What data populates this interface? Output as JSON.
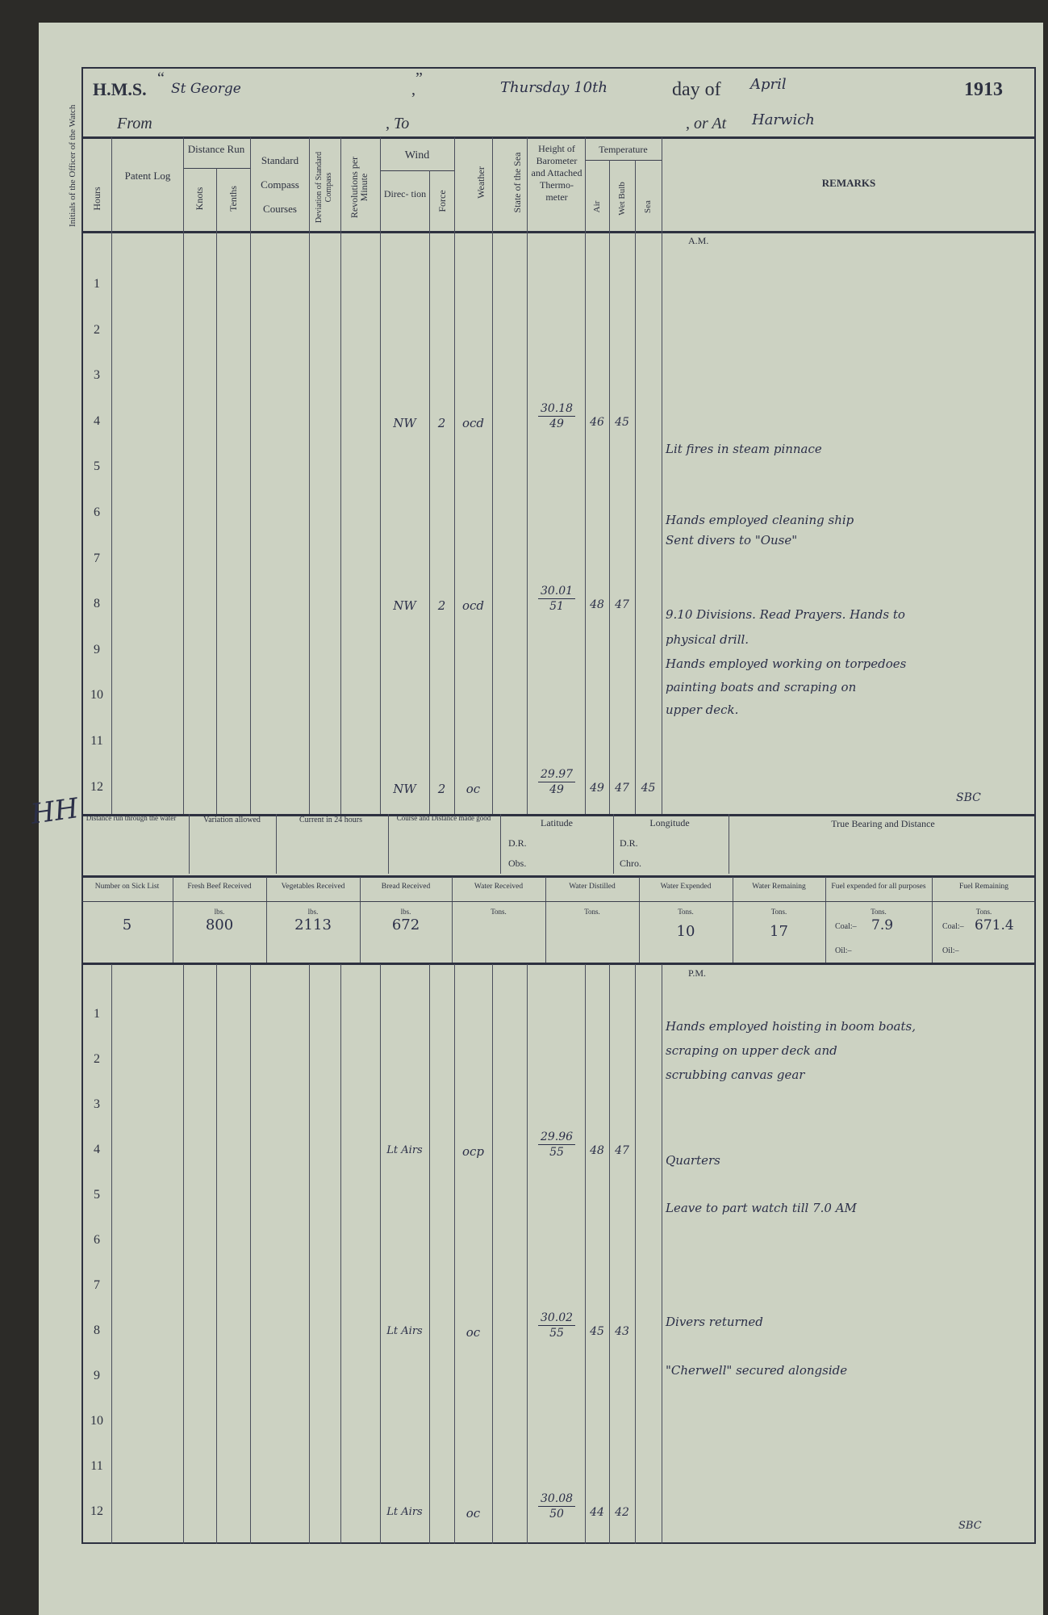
{
  "header": {
    "hms_label": "H.M.S.",
    "ship_name": "St George",
    "weekday_date": "Thursday 10th",
    "day_of_label": "day of",
    "month": "April",
    "year": "1913",
    "from_label": "From",
    "to_label": ", To",
    "at_label": ", or At",
    "at_place": "Harwich"
  },
  "margin_label": "Initials of the Officer of the Watch",
  "margin_initials": "HH",
  "columns": {
    "hours": "Hours",
    "patent_log": "Patent Log",
    "distance_run": "Distance Run",
    "knots": "Knots",
    "tenths": "Tenths",
    "standard_compass": "Standard Compass Courses",
    "deviation": "Deviation of Standard Compass",
    "revolutions": "Revolutions per Minute",
    "wind": "Wind",
    "direction": "Direc- tion",
    "force": "Force",
    "weather": "Weather",
    "state_of_sea": "State of the Sea",
    "barometer": "Height of Barometer and Attached Thermo- meter",
    "temperature": "Temperature",
    "air": "Air",
    "wet_bulb": "Wet Bulb",
    "sea": "Sea",
    "remarks": "REMARKS"
  },
  "am": {
    "label": "A.M.",
    "hours": [
      "1",
      "2",
      "3",
      "4",
      "5",
      "6",
      "7",
      "8",
      "9",
      "10",
      "11",
      "12"
    ],
    "readings": [
      {
        "hour": 4,
        "direction": "NW",
        "force": "2",
        "weather": "ocd",
        "barometer": "30.18",
        "thermometer": "49",
        "air": "46",
        "wet_bulb": "45",
        "sea": ""
      },
      {
        "hour": 8,
        "direction": "NW",
        "force": "2",
        "weather": "ocd",
        "barometer": "30.01",
        "thermometer": "51",
        "air": "48",
        "wet_bulb": "47",
        "sea": ""
      },
      {
        "hour": 12,
        "direction": "NW",
        "force": "2",
        "weather": "oc",
        "barometer": "29.97",
        "thermometer": "49",
        "air": "49",
        "wet_bulb": "47",
        "sea": "45"
      }
    ],
    "remarks": [
      "Lit fires in steam pinnace",
      "Hands employed cleaning ship",
      "Sent divers to \"Ouse\"",
      "9.10 Divisions. Read Prayers. Hands to",
      "physical drill.",
      "Hands employed working on torpedoes",
      "painting boats and scraping on",
      "upper deck."
    ],
    "signature": "SBC"
  },
  "summary": {
    "distance_run": "Distance run through the water",
    "variation": "Variation allowed",
    "current": "Current in 24 hours",
    "course_distance": "Course and Distance made good",
    "latitude": "Latitude",
    "lat_dr": "D.R.",
    "lat_obs": "Obs.",
    "longitude": "Longitude",
    "long_dr": "D.R.",
    "long_chro": "Chro.",
    "true_bearing": "True Bearing and Distance"
  },
  "supplies": {
    "headers": [
      "Number on Sick List",
      "Fresh Beef Received",
      "Vegetables Received",
      "Bread Received",
      "Water Received",
      "Water Distilled",
      "Water Expended",
      "Water Remaining",
      "Fuel expended for all purposes",
      "Fuel Remaining"
    ],
    "units": [
      "",
      "lbs.",
      "lbs.",
      "lbs.",
      "Tons.",
      "Tons.",
      "Tons.",
      "Tons.",
      "Tons.",
      "Tons."
    ],
    "values": [
      "5",
      "800",
      "2113",
      "672",
      "",
      "",
      "10",
      "17",
      "",
      ""
    ],
    "coal_label": "Coal:–",
    "oil_label": "Oil:–",
    "fuel_expended_coal": "7.9",
    "fuel_remaining_coal": "671.4"
  },
  "pm": {
    "label": "P.M.",
    "hours": [
      "1",
      "2",
      "3",
      "4",
      "5",
      "6",
      "7",
      "8",
      "9",
      "10",
      "11",
      "12"
    ],
    "readings": [
      {
        "hour": 4,
        "direction": "Lt Airs",
        "force": "",
        "weather": "ocp",
        "barometer": "29.96",
        "thermometer": "55",
        "air": "48",
        "wet_bulb": "47",
        "sea": ""
      },
      {
        "hour": 8,
        "direction": "Lt Airs",
        "force": "",
        "weather": "oc",
        "barometer": "30.02",
        "thermometer": "55",
        "air": "45",
        "wet_bulb": "43",
        "sea": ""
      },
      {
        "hour": 12,
        "direction": "Lt Airs",
        "force": "",
        "weather": "oc",
        "barometer": "30.08",
        "thermometer": "50",
        "air": "44",
        "wet_bulb": "42",
        "sea": ""
      }
    ],
    "remarks": [
      "Hands employed hoisting in boom boats,",
      "scraping on upper deck and",
      "scrubbing canvas gear",
      "Quarters",
      "Leave to part watch till 7.0 AM",
      "Divers returned",
      "\"Cherwell\" secured alongside"
    ],
    "signature": "SBC"
  }
}
